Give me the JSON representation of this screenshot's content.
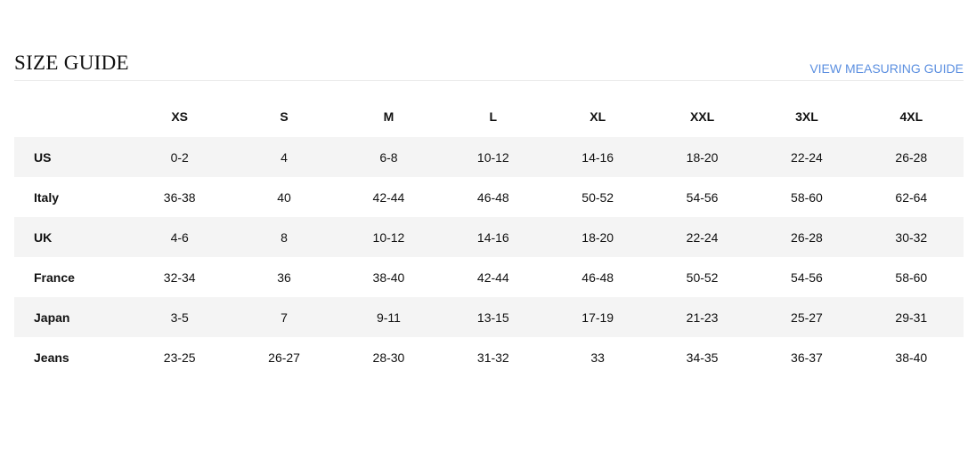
{
  "header": {
    "title": "SIZE GUIDE",
    "link": "VIEW MEASURING GUIDE",
    "link_color": "#5b8fe0"
  },
  "table": {
    "columns": [
      "XS",
      "S",
      "M",
      "L",
      "XL",
      "XXL",
      "3XL",
      "4XL"
    ],
    "rows": [
      {
        "label": "US",
        "values": [
          "0-2",
          "4",
          "6-8",
          "10-12",
          "14-16",
          "18-20",
          "22-24",
          "26-28"
        ]
      },
      {
        "label": "Italy",
        "values": [
          "36-38",
          "40",
          "42-44",
          "46-48",
          "50-52",
          "54-56",
          "58-60",
          "62-64"
        ]
      },
      {
        "label": "UK",
        "values": [
          "4-6",
          "8",
          "10-12",
          "14-16",
          "18-20",
          "22-24",
          "26-28",
          "30-32"
        ]
      },
      {
        "label": "France",
        "values": [
          "32-34",
          "36",
          "38-40",
          "42-44",
          "46-48",
          "50-52",
          "54-56",
          "58-60"
        ]
      },
      {
        "label": "Japan",
        "values": [
          "3-5",
          "7",
          "9-11",
          "13-15",
          "17-19",
          "21-23",
          "25-27",
          "29-31"
        ]
      },
      {
        "label": "Jeans",
        "values": [
          "23-25",
          "26-27",
          "28-30",
          "31-32",
          "33",
          "34-35",
          "36-37",
          "38-40"
        ]
      }
    ]
  }
}
